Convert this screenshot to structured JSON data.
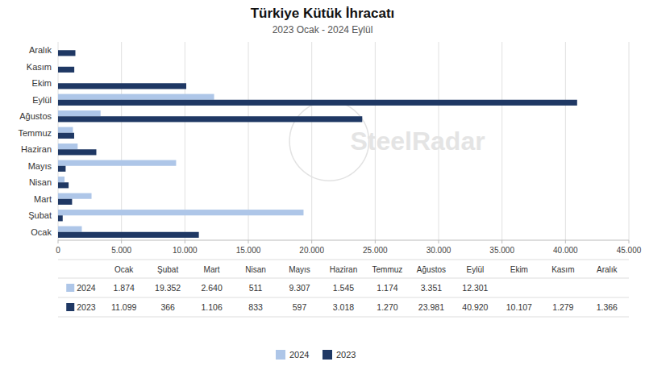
{
  "chart_data": {
    "type": "bar",
    "orientation": "horizontal",
    "title": "Türkiye Kütük İhracatı",
    "subtitle": "2023 Ocak - 2024 Eylül",
    "annotations": [
      "SteelRadar"
    ],
    "categories": [
      "Ocak",
      "Şubat",
      "Mart",
      "Nisan",
      "Mayıs",
      "Haziran",
      "Temmuz",
      "Ağustos",
      "Eylül",
      "Ekim",
      "Kasım",
      "Aralık"
    ],
    "series": [
      {
        "name": "2024",
        "color": "#aec6e8",
        "values": [
          1874,
          19352,
          2640,
          511,
          9307,
          1545,
          1174,
          3351,
          12301,
          null,
          null,
          null
        ],
        "value_labels": [
          "1.874",
          "19.352",
          "2.640",
          "511",
          "9.307",
          "1.545",
          "1.174",
          "3.351",
          "12.301",
          null,
          null,
          null
        ]
      },
      {
        "name": "2023",
        "color": "#1f3864",
        "values": [
          11099,
          366,
          1106,
          833,
          597,
          3018,
          1270,
          23981,
          40920,
          10107,
          1279,
          1366
        ],
        "value_labels": [
          "11.099",
          "366",
          "1.106",
          "833",
          "597",
          "3.018",
          "1.270",
          "23.981",
          "40.920",
          "10.107",
          "1.279",
          "1.366"
        ]
      }
    ],
    "xlim": [
      0,
      45000
    ],
    "xticks": [
      0,
      {
        "value": 5000,
        "label": "5.000"
      },
      {
        "value": 10000,
        "label": "10.000"
      },
      {
        "value": 15000,
        "label": "15.000"
      },
      {
        "value": 20000,
        "label": "20.000"
      },
      {
        "value": 25000,
        "label": "25.000"
      },
      {
        "value": 30000,
        "label": "30.000"
      },
      {
        "value": 35000,
        "label": "35.000"
      },
      {
        "value": 40000,
        "label": "40.000"
      },
      {
        "value": 45000,
        "label": "45.000"
      }
    ],
    "grid": true,
    "legend": "bottom"
  }
}
